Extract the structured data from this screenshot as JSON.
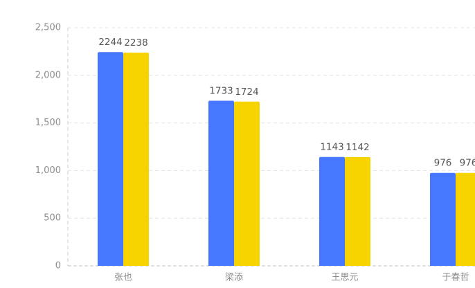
{
  "chart_data": {
    "type": "bar",
    "categories": [
      "张也",
      "梁添",
      "王思元",
      "于春哲"
    ],
    "series": [
      {
        "color": "#4677ff",
        "values": [
          2244,
          1733,
          1143,
          976
        ]
      },
      {
        "color": "#f7d300",
        "values": [
          2238,
          1724,
          1142,
          976
        ]
      }
    ],
    "ylim": [
      0,
      2500
    ],
    "yticks": [
      0,
      500,
      {
        "value": 1000,
        "label": "1,000"
      },
      {
        "value": 1500,
        "label": "1,500"
      },
      {
        "value": 2000,
        "label": "2,000"
      },
      {
        "value": 2500,
        "label": "2,500"
      }
    ],
    "grid": true
  }
}
